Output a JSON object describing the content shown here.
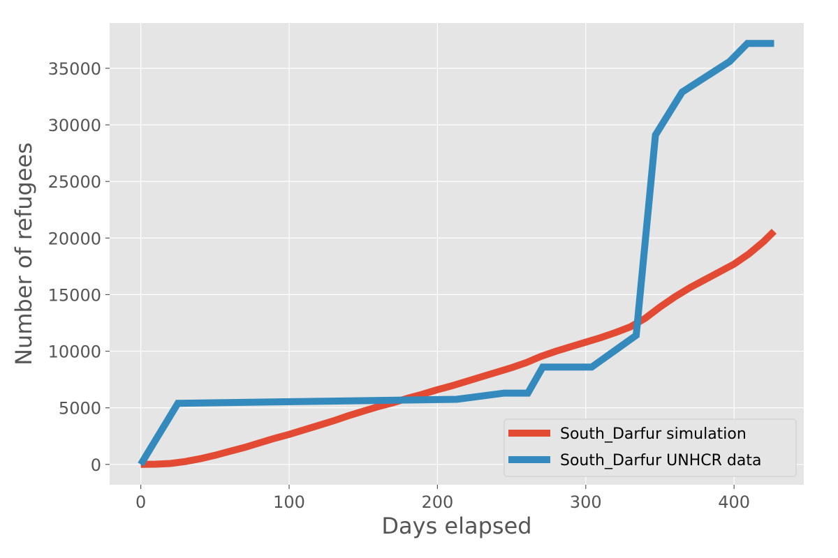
{
  "chart_data": {
    "type": "line",
    "xlabel": "Days elapsed",
    "ylabel": "Number of refugees",
    "xlim": [
      -21,
      447
    ],
    "ylim": [
      -1800,
      39000
    ],
    "xticks": [
      0,
      100,
      200,
      300,
      400
    ],
    "yticks": [
      0,
      5000,
      10000,
      15000,
      20000,
      25000,
      30000,
      35000
    ],
    "grid": true,
    "legend_position": "lower right",
    "series": [
      {
        "name": "South_Darfur simulation",
        "color": "#e24a33",
        "x": [
          0,
          10,
          20,
          30,
          40,
          50,
          60,
          70,
          80,
          90,
          100,
          110,
          120,
          130,
          140,
          150,
          160,
          170,
          180,
          190,
          200,
          210,
          220,
          230,
          240,
          250,
          260,
          270,
          280,
          290,
          300,
          310,
          320,
          330,
          340,
          350,
          360,
          370,
          380,
          390,
          400,
          410,
          420,
          427
        ],
        "y": [
          0,
          20,
          80,
          250,
          500,
          800,
          1150,
          1500,
          1900,
          2300,
          2650,
          3050,
          3450,
          3850,
          4300,
          4700,
          5100,
          5450,
          5850,
          6200,
          6600,
          6950,
          7350,
          7750,
          8150,
          8550,
          9000,
          9550,
          10000,
          10400,
          10800,
          11200,
          11650,
          12150,
          12900,
          13900,
          14800,
          15600,
          16300,
          17000,
          17700,
          18600,
          19700,
          20600
        ]
      },
      {
        "name": "South_Darfur UNHCR data",
        "color": "#348abd",
        "x": [
          0,
          25,
          213,
          245,
          261,
          271,
          304,
          334,
          347,
          365,
          397,
          409,
          427
        ],
        "y": [
          0,
          5400,
          5750,
          6300,
          6300,
          8600,
          8600,
          11400,
          29100,
          32900,
          35600,
          37200,
          37200
        ]
      }
    ]
  }
}
